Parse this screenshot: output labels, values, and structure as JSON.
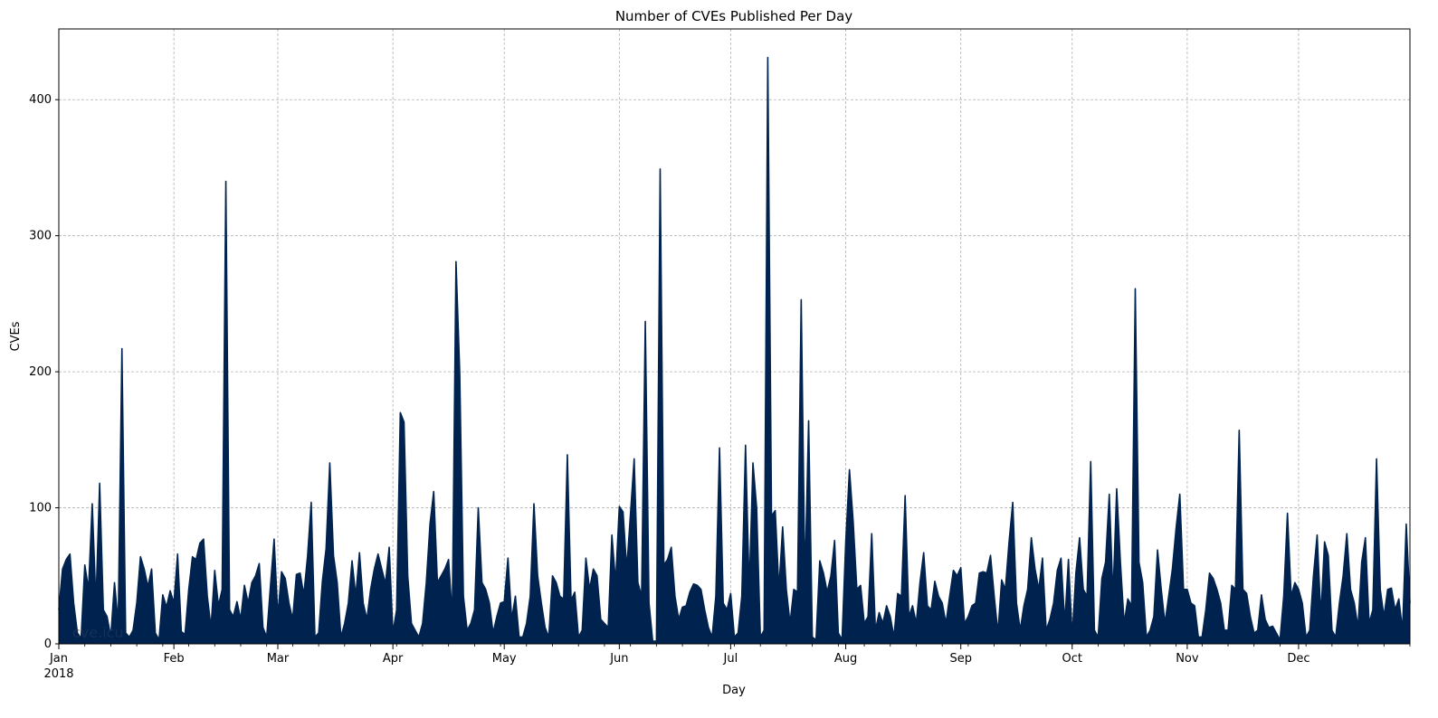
{
  "chart_data": {
    "type": "area",
    "title": "Number of CVEs Published Per Day",
    "xlabel": "Day",
    "ylabel": "CVEs",
    "watermark": "cve.icu",
    "year_label": "2018",
    "x_range": [
      "2018-01-01",
      "2018-12-31"
    ],
    "ylim": [
      0,
      452
    ],
    "yticks": [
      0,
      100,
      200,
      300,
      400
    ],
    "xticks": [
      {
        "date": "2018-01-01",
        "label": "Jan"
      },
      {
        "date": "2018-02-01",
        "label": "Feb"
      },
      {
        "date": "2018-03-01",
        "label": "Mar"
      },
      {
        "date": "2018-04-01",
        "label": "Apr"
      },
      {
        "date": "2018-05-01",
        "label": "May"
      },
      {
        "date": "2018-06-01",
        "label": "Jun"
      },
      {
        "date": "2018-07-01",
        "label": "Jul"
      },
      {
        "date": "2018-08-01",
        "label": "Aug"
      },
      {
        "date": "2018-09-01",
        "label": "Sep"
      },
      {
        "date": "2018-10-01",
        "label": "Oct"
      },
      {
        "date": "2018-11-01",
        "label": "Nov"
      },
      {
        "date": "2018-12-01",
        "label": "Dec"
      }
    ],
    "grid": true,
    "fill_color": "#00224e",
    "line_color": "#00224e",
    "points": [
      [
        "2018-01-01",
        25
      ],
      [
        "2018-01-02",
        55
      ],
      [
        "2018-01-03",
        62
      ],
      [
        "2018-01-04",
        66
      ],
      [
        "2018-01-05",
        30
      ],
      [
        "2018-01-06",
        8
      ],
      [
        "2018-01-07",
        4
      ],
      [
        "2018-01-08",
        58
      ],
      [
        "2018-01-09",
        40
      ],
      [
        "2018-01-10",
        103
      ],
      [
        "2018-01-11",
        30
      ],
      [
        "2018-01-12",
        118
      ],
      [
        "2018-01-13",
        25
      ],
      [
        "2018-01-14",
        20
      ],
      [
        "2018-01-15",
        5
      ],
      [
        "2018-01-16",
        45
      ],
      [
        "2018-01-17",
        15
      ],
      [
        "2018-01-18",
        217
      ],
      [
        "2018-01-19",
        8
      ],
      [
        "2018-01-20",
        5
      ],
      [
        "2018-01-21",
        10
      ],
      [
        "2018-01-22",
        30
      ],
      [
        "2018-01-23",
        64
      ],
      [
        "2018-01-24",
        55
      ],
      [
        "2018-01-25",
        42
      ],
      [
        "2018-01-26",
        55
      ],
      [
        "2018-01-27",
        8
      ],
      [
        "2018-01-28",
        3
      ],
      [
        "2018-01-29",
        36
      ],
      [
        "2018-01-30",
        27
      ],
      [
        "2018-01-31",
        39
      ],
      [
        "2018-02-01",
        30
      ],
      [
        "2018-02-02",
        66
      ],
      [
        "2018-02-03",
        9
      ],
      [
        "2018-02-04",
        7
      ],
      [
        "2018-02-05",
        40
      ],
      [
        "2018-02-06",
        64
      ],
      [
        "2018-02-07",
        62
      ],
      [
        "2018-02-08",
        74
      ],
      [
        "2018-02-09",
        77
      ],
      [
        "2018-02-10",
        35
      ],
      [
        "2018-02-11",
        12
      ],
      [
        "2018-02-12",
        54
      ],
      [
        "2018-02-13",
        28
      ],
      [
        "2018-02-14",
        40
      ],
      [
        "2018-02-15",
        340
      ],
      [
        "2018-02-16",
        25
      ],
      [
        "2018-02-17",
        20
      ],
      [
        "2018-02-18",
        31
      ],
      [
        "2018-02-19",
        18
      ],
      [
        "2018-02-20",
        43
      ],
      [
        "2018-02-21",
        30
      ],
      [
        "2018-02-22",
        45
      ],
      [
        "2018-02-23",
        50
      ],
      [
        "2018-02-24",
        59
      ],
      [
        "2018-02-25",
        12
      ],
      [
        "2018-02-26",
        5
      ],
      [
        "2018-02-27",
        42
      ],
      [
        "2018-02-28",
        77
      ],
      [
        "2018-03-01",
        20
      ],
      [
        "2018-03-02",
        53
      ],
      [
        "2018-03-03",
        48
      ],
      [
        "2018-03-04",
        30
      ],
      [
        "2018-03-05",
        18
      ],
      [
        "2018-03-06",
        51
      ],
      [
        "2018-03-07",
        52
      ],
      [
        "2018-03-08",
        36
      ],
      [
        "2018-03-09",
        64
      ],
      [
        "2018-03-10",
        104
      ],
      [
        "2018-03-11",
        5
      ],
      [
        "2018-03-12",
        8
      ],
      [
        "2018-03-13",
        46
      ],
      [
        "2018-03-14",
        70
      ],
      [
        "2018-03-15",
        133
      ],
      [
        "2018-03-16",
        65
      ],
      [
        "2018-03-17",
        45
      ],
      [
        "2018-03-18",
        5
      ],
      [
        "2018-03-19",
        15
      ],
      [
        "2018-03-20",
        30
      ],
      [
        "2018-03-21",
        61
      ],
      [
        "2018-03-22",
        35
      ],
      [
        "2018-03-23",
        67
      ],
      [
        "2018-03-24",
        30
      ],
      [
        "2018-03-25",
        18
      ],
      [
        "2018-03-26",
        40
      ],
      [
        "2018-03-27",
        55
      ],
      [
        "2018-03-28",
        66
      ],
      [
        "2018-03-29",
        55
      ],
      [
        "2018-03-30",
        44
      ],
      [
        "2018-03-31",
        71
      ],
      [
        "2018-04-01",
        8
      ],
      [
        "2018-04-02",
        25
      ],
      [
        "2018-04-03",
        170
      ],
      [
        "2018-04-04",
        163
      ],
      [
        "2018-04-05",
        50
      ],
      [
        "2018-04-06",
        15
      ],
      [
        "2018-04-07",
        10
      ],
      [
        "2018-04-08",
        5
      ],
      [
        "2018-04-09",
        15
      ],
      [
        "2018-04-10",
        45
      ],
      [
        "2018-04-11",
        88
      ],
      [
        "2018-04-12",
        112
      ],
      [
        "2018-04-13",
        45
      ],
      [
        "2018-04-14",
        50
      ],
      [
        "2018-04-15",
        55
      ],
      [
        "2018-04-16",
        62
      ],
      [
        "2018-04-17",
        20
      ],
      [
        "2018-04-18",
        281
      ],
      [
        "2018-04-19",
        200
      ],
      [
        "2018-04-20",
        35
      ],
      [
        "2018-04-21",
        10
      ],
      [
        "2018-04-22",
        15
      ],
      [
        "2018-04-23",
        25
      ],
      [
        "2018-04-24",
        100
      ],
      [
        "2018-04-25",
        45
      ],
      [
        "2018-04-26",
        40
      ],
      [
        "2018-04-27",
        30
      ],
      [
        "2018-04-28",
        8
      ],
      [
        "2018-04-29",
        20
      ],
      [
        "2018-04-30",
        30
      ],
      [
        "2018-05-01",
        31
      ],
      [
        "2018-05-02",
        63
      ],
      [
        "2018-05-03",
        18
      ],
      [
        "2018-05-04",
        35
      ],
      [
        "2018-05-05",
        5
      ],
      [
        "2018-05-06",
        5
      ],
      [
        "2018-05-07",
        15
      ],
      [
        "2018-05-08",
        35
      ],
      [
        "2018-05-09",
        103
      ],
      [
        "2018-05-10",
        50
      ],
      [
        "2018-05-11",
        30
      ],
      [
        "2018-05-12",
        12
      ],
      [
        "2018-05-13",
        5
      ],
      [
        "2018-05-14",
        50
      ],
      [
        "2018-05-15",
        45
      ],
      [
        "2018-05-16",
        35
      ],
      [
        "2018-05-17",
        33
      ],
      [
        "2018-05-18",
        139
      ],
      [
        "2018-05-19",
        32
      ],
      [
        "2018-05-20",
        38
      ],
      [
        "2018-05-21",
        5
      ],
      [
        "2018-05-22",
        10
      ],
      [
        "2018-05-23",
        63
      ],
      [
        "2018-05-24",
        40
      ],
      [
        "2018-05-25",
        55
      ],
      [
        "2018-05-26",
        50
      ],
      [
        "2018-05-27",
        18
      ],
      [
        "2018-05-28",
        15
      ],
      [
        "2018-05-29",
        12
      ],
      [
        "2018-05-30",
        80
      ],
      [
        "2018-05-31",
        45
      ],
      [
        "2018-06-01",
        101
      ],
      [
        "2018-06-02",
        97
      ],
      [
        "2018-06-03",
        55
      ],
      [
        "2018-06-04",
        95
      ],
      [
        "2018-06-05",
        136
      ],
      [
        "2018-06-06",
        45
      ],
      [
        "2018-06-07",
        35
      ],
      [
        "2018-06-08",
        237
      ],
      [
        "2018-06-09",
        30
      ],
      [
        "2018-06-10",
        2
      ],
      [
        "2018-06-11",
        2
      ],
      [
        "2018-06-12",
        349
      ],
      [
        "2018-06-13",
        58
      ],
      [
        "2018-06-14",
        62
      ],
      [
        "2018-06-15",
        71
      ],
      [
        "2018-06-16",
        35
      ],
      [
        "2018-06-17",
        18
      ],
      [
        "2018-06-18",
        27
      ],
      [
        "2018-06-19",
        28
      ],
      [
        "2018-06-20",
        38
      ],
      [
        "2018-06-21",
        44
      ],
      [
        "2018-06-22",
        43
      ],
      [
        "2018-06-23",
        40
      ],
      [
        "2018-06-24",
        25
      ],
      [
        "2018-06-25",
        12
      ],
      [
        "2018-06-26",
        5
      ],
      [
        "2018-06-27",
        35
      ],
      [
        "2018-06-28",
        144
      ],
      [
        "2018-06-29",
        30
      ],
      [
        "2018-06-30",
        25
      ],
      [
        "2018-07-01",
        37
      ],
      [
        "2018-07-02",
        5
      ],
      [
        "2018-07-03",
        8
      ],
      [
        "2018-07-04",
        35
      ],
      [
        "2018-07-05",
        146
      ],
      [
        "2018-07-06",
        40
      ],
      [
        "2018-07-07",
        133
      ],
      [
        "2018-07-08",
        100
      ],
      [
        "2018-07-09",
        5
      ],
      [
        "2018-07-10",
        10
      ],
      [
        "2018-07-11",
        431
      ],
      [
        "2018-07-12",
        94
      ],
      [
        "2018-07-13",
        98
      ],
      [
        "2018-07-14",
        40
      ],
      [
        "2018-07-15",
        86
      ],
      [
        "2018-07-16",
        40
      ],
      [
        "2018-07-17",
        15
      ],
      [
        "2018-07-18",
        40
      ],
      [
        "2018-07-19",
        38
      ],
      [
        "2018-07-20",
        253
      ],
      [
        "2018-07-21",
        45
      ],
      [
        "2018-07-22",
        164
      ],
      [
        "2018-07-23",
        5
      ],
      [
        "2018-07-24",
        3
      ],
      [
        "2018-07-25",
        61
      ],
      [
        "2018-07-26",
        52
      ],
      [
        "2018-07-27",
        38
      ],
      [
        "2018-07-28",
        50
      ],
      [
        "2018-07-29",
        76
      ],
      [
        "2018-07-30",
        8
      ],
      [
        "2018-07-31",
        3
      ],
      [
        "2018-08-01",
        75
      ],
      [
        "2018-08-02",
        128
      ],
      [
        "2018-08-03",
        90
      ],
      [
        "2018-08-04",
        40
      ],
      [
        "2018-08-05",
        43
      ],
      [
        "2018-08-06",
        15
      ],
      [
        "2018-08-07",
        20
      ],
      [
        "2018-08-08",
        81
      ],
      [
        "2018-08-09",
        10
      ],
      [
        "2018-08-10",
        23
      ],
      [
        "2018-08-11",
        15
      ],
      [
        "2018-08-12",
        28
      ],
      [
        "2018-08-13",
        20
      ],
      [
        "2018-08-14",
        5
      ],
      [
        "2018-08-15",
        37
      ],
      [
        "2018-08-16",
        35
      ],
      [
        "2018-08-17",
        109
      ],
      [
        "2018-08-18",
        20
      ],
      [
        "2018-08-19",
        28
      ],
      [
        "2018-08-20",
        15
      ],
      [
        "2018-08-21",
        45
      ],
      [
        "2018-08-22",
        67
      ],
      [
        "2018-08-23",
        28
      ],
      [
        "2018-08-24",
        25
      ],
      [
        "2018-08-25",
        46
      ],
      [
        "2018-08-26",
        35
      ],
      [
        "2018-08-27",
        30
      ],
      [
        "2018-08-28",
        15
      ],
      [
        "2018-08-29",
        35
      ],
      [
        "2018-08-30",
        54
      ],
      [
        "2018-08-31",
        50
      ],
      [
        "2018-09-01",
        56
      ],
      [
        "2018-09-02",
        15
      ],
      [
        "2018-09-03",
        20
      ],
      [
        "2018-09-04",
        28
      ],
      [
        "2018-09-05",
        30
      ],
      [
        "2018-09-06",
        52
      ],
      [
        "2018-09-07",
        53
      ],
      [
        "2018-09-08",
        52
      ],
      [
        "2018-09-09",
        65
      ],
      [
        "2018-09-10",
        35
      ],
      [
        "2018-09-11",
        8
      ],
      [
        "2018-09-12",
        47
      ],
      [
        "2018-09-13",
        40
      ],
      [
        "2018-09-14",
        75
      ],
      [
        "2018-09-15",
        104
      ],
      [
        "2018-09-16",
        30
      ],
      [
        "2018-09-17",
        10
      ],
      [
        "2018-09-18",
        28
      ],
      [
        "2018-09-19",
        40
      ],
      [
        "2018-09-20",
        78
      ],
      [
        "2018-09-21",
        55
      ],
      [
        "2018-09-22",
        40
      ],
      [
        "2018-09-23",
        63
      ],
      [
        "2018-09-24",
        10
      ],
      [
        "2018-09-25",
        18
      ],
      [
        "2018-09-26",
        30
      ],
      [
        "2018-09-27",
        54
      ],
      [
        "2018-09-28",
        63
      ],
      [
        "2018-09-29",
        15
      ],
      [
        "2018-09-30",
        62
      ],
      [
        "2018-10-01",
        5
      ],
      [
        "2018-10-02",
        52
      ],
      [
        "2018-10-03",
        78
      ],
      [
        "2018-10-04",
        40
      ],
      [
        "2018-10-05",
        35
      ],
      [
        "2018-10-06",
        134
      ],
      [
        "2018-10-07",
        10
      ],
      [
        "2018-10-08",
        5
      ],
      [
        "2018-10-09",
        48
      ],
      [
        "2018-10-10",
        60
      ],
      [
        "2018-10-11",
        110
      ],
      [
        "2018-10-12",
        35
      ],
      [
        "2018-10-13",
        114
      ],
      [
        "2018-10-14",
        60
      ],
      [
        "2018-10-15",
        15
      ],
      [
        "2018-10-16",
        33
      ],
      [
        "2018-10-17",
        28
      ],
      [
        "2018-10-18",
        261
      ],
      [
        "2018-10-19",
        60
      ],
      [
        "2018-10-20",
        45
      ],
      [
        "2018-10-21",
        5
      ],
      [
        "2018-10-22",
        10
      ],
      [
        "2018-10-23",
        20
      ],
      [
        "2018-10-24",
        69
      ],
      [
        "2018-10-25",
        40
      ],
      [
        "2018-10-26",
        15
      ],
      [
        "2018-10-27",
        35
      ],
      [
        "2018-10-28",
        55
      ],
      [
        "2018-10-29",
        85
      ],
      [
        "2018-10-30",
        110
      ],
      [
        "2018-10-31",
        40
      ],
      [
        "2018-11-01",
        40
      ],
      [
        "2018-11-02",
        30
      ],
      [
        "2018-11-03",
        28
      ],
      [
        "2018-11-04",
        5
      ],
      [
        "2018-11-05",
        5
      ],
      [
        "2018-11-06",
        25
      ],
      [
        "2018-11-07",
        52
      ],
      [
        "2018-11-08",
        48
      ],
      [
        "2018-11-09",
        40
      ],
      [
        "2018-11-10",
        30
      ],
      [
        "2018-11-11",
        10
      ],
      [
        "2018-11-12",
        10
      ],
      [
        "2018-11-13",
        43
      ],
      [
        "2018-11-14",
        40
      ],
      [
        "2018-11-15",
        157
      ],
      [
        "2018-11-16",
        40
      ],
      [
        "2018-11-17",
        37
      ],
      [
        "2018-11-18",
        20
      ],
      [
        "2018-11-19",
        8
      ],
      [
        "2018-11-20",
        10
      ],
      [
        "2018-11-21",
        36
      ],
      [
        "2018-11-22",
        18
      ],
      [
        "2018-11-23",
        12
      ],
      [
        "2018-11-24",
        13
      ],
      [
        "2018-11-25",
        8
      ],
      [
        "2018-11-26",
        3
      ],
      [
        "2018-11-27",
        35
      ],
      [
        "2018-11-28",
        96
      ],
      [
        "2018-11-29",
        35
      ],
      [
        "2018-11-30",
        45
      ],
      [
        "2018-12-01",
        40
      ],
      [
        "2018-12-02",
        30
      ],
      [
        "2018-12-03",
        5
      ],
      [
        "2018-12-04",
        10
      ],
      [
        "2018-12-05",
        50
      ],
      [
        "2018-12-06",
        80
      ],
      [
        "2018-12-07",
        20
      ],
      [
        "2018-12-08",
        75
      ],
      [
        "2018-12-09",
        65
      ],
      [
        "2018-12-10",
        10
      ],
      [
        "2018-12-11",
        5
      ],
      [
        "2018-12-12",
        30
      ],
      [
        "2018-12-13",
        50
      ],
      [
        "2018-12-14",
        81
      ],
      [
        "2018-12-15",
        40
      ],
      [
        "2018-12-16",
        30
      ],
      [
        "2018-12-17",
        12
      ],
      [
        "2018-12-18",
        60
      ],
      [
        "2018-12-19",
        78
      ],
      [
        "2018-12-20",
        15
      ],
      [
        "2018-12-21",
        25
      ],
      [
        "2018-12-22",
        136
      ],
      [
        "2018-12-23",
        40
      ],
      [
        "2018-12-24",
        20
      ],
      [
        "2018-12-25",
        40
      ],
      [
        "2018-12-26",
        41
      ],
      [
        "2018-12-27",
        25
      ],
      [
        "2018-12-28",
        33
      ],
      [
        "2018-12-29",
        10
      ],
      [
        "2018-12-30",
        88
      ],
      [
        "2018-12-31",
        30
      ]
    ]
  }
}
